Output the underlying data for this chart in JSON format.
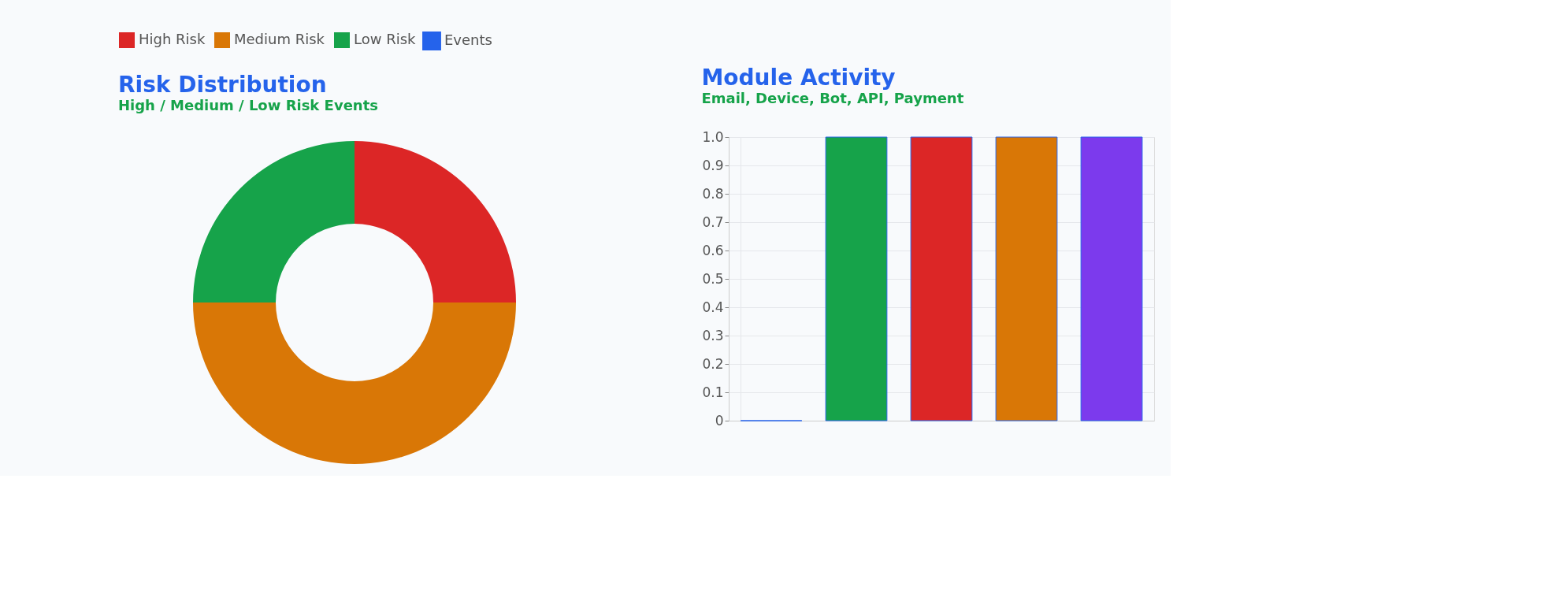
{
  "chart_data": [
    {
      "type": "donut",
      "title": "Risk Distribution",
      "subtitle": "High / Medium / Low Risk Events",
      "categories": [
        "High Risk",
        "Medium Risk",
        "Low Risk"
      ],
      "values": [
        25,
        50,
        25
      ],
      "colors": [
        "#dc2626",
        "#d97706",
        "#16a34a"
      ],
      "legend": "top"
    },
    {
      "type": "bar",
      "title": "Module Activity",
      "subtitle": "Email, Device, Bot, API, Payment",
      "categories": [
        null,
        null,
        null,
        null,
        null
      ],
      "series": [
        {
          "name": "Events",
          "color": "#2563eb",
          "values": [
            0,
            1,
            1,
            1,
            1
          ],
          "colors": [
            "#2563eb",
            "#16a34a",
            "#dc2626",
            "#d97706",
            "#7c3aed"
          ]
        }
      ],
      "ylim": [
        0,
        1
      ],
      "yticks": [
        0,
        0.1,
        0.2,
        0.3,
        0.4,
        0.5,
        0.6,
        0.7,
        0.8,
        0.9,
        {
          "value": 1,
          "label": "1.0"
        }
      ],
      "grid": true,
      "legend": "top",
      "tick_labels": "y"
    }
  ]
}
